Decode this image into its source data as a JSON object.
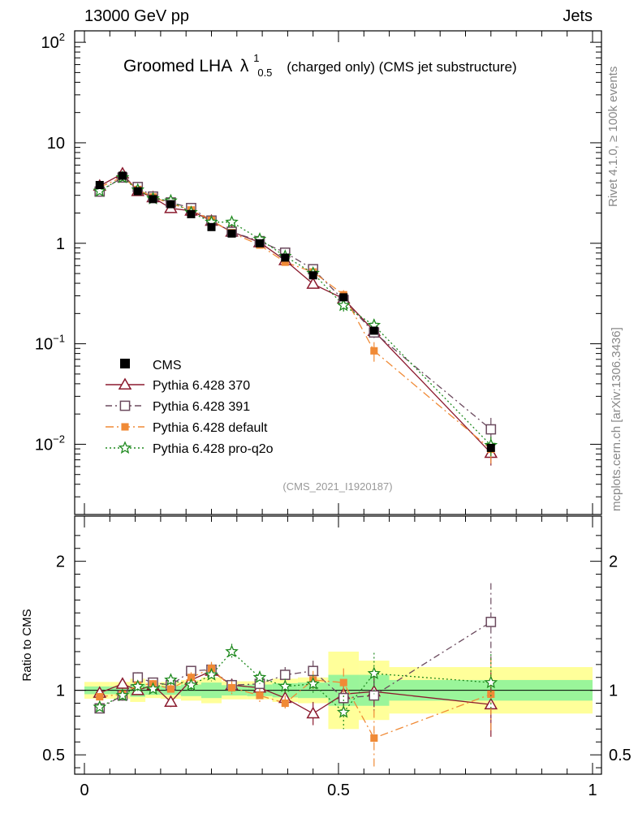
{
  "header": {
    "left": "13000 GeV pp",
    "right": "Jets"
  },
  "title": {
    "main": "Groomed LHA",
    "lambda": "λ",
    "sup": "1",
    "sub": "0.5",
    "extra": "(charged only) (CMS jet substructure)"
  },
  "side_labels": {
    "rivet": "Rivet 4.1.0, ≥ 100k events",
    "mcplots": "mcplots.cern.ch [arXiv:1306.3436]"
  },
  "analysis_id": "(CMS_2021_I1920187)",
  "chart_data": {
    "type": "line",
    "x": [
      0.03,
      0.075,
      0.105,
      0.135,
      0.17,
      0.21,
      0.25,
      0.29,
      0.345,
      0.395,
      0.45,
      0.51,
      0.57,
      0.8
    ],
    "xlim": [
      0,
      1
    ],
    "main_ylim": [
      0.002,
      130
    ],
    "main_ticks": [
      {
        "v": 100,
        "base": "10",
        "exp": "2"
      },
      {
        "v": 10,
        "base": "10",
        "exp": ""
      },
      {
        "v": 1,
        "base": "1",
        "exp": ""
      },
      {
        "v": 0.1,
        "base": "10",
        "exp": "−1"
      },
      {
        "v": 0.01,
        "base": "10",
        "exp": "−2"
      }
    ],
    "ratio_ylim": [
      0.35,
      2.35
    ],
    "ratio_ticks": [
      {
        "v": 2,
        "label": "2"
      },
      {
        "v": 1,
        "label": "1"
      },
      {
        "v": 0.5,
        "label": "0.5"
      }
    ],
    "x_ticks": [
      {
        "v": 0,
        "label": "0"
      },
      {
        "v": 0.5,
        "label": "0.5"
      },
      {
        "v": 1,
        "label": "1"
      }
    ],
    "ratio_ylabel": "Ratio to CMS",
    "cms": {
      "name": "CMS",
      "values": [
        3.8,
        4.7,
        3.3,
        2.75,
        2.45,
        1.95,
        1.45,
        1.25,
        1.0,
        0.72,
        0.48,
        0.29,
        0.135,
        0.0092
      ],
      "bands_outer": [
        0.065,
        0.065,
        0.09,
        0.06,
        0.065,
        0.08,
        0.1,
        0.07,
        0.07,
        0.09,
        0.1,
        0.3,
        0.23,
        0.18
      ],
      "bands_inner": [
        0.03,
        0.03,
        0.05,
        0.035,
        0.035,
        0.045,
        0.06,
        0.04,
        0.045,
        0.055,
        0.06,
        0.12,
        0.12,
        0.08
      ],
      "bin_edges": [
        0.0,
        0.05,
        0.09,
        0.12,
        0.15,
        0.19,
        0.23,
        0.27,
        0.32,
        0.37,
        0.42,
        0.48,
        0.54,
        0.6,
        1.0
      ]
    },
    "series": [
      {
        "name": "Pythia 6.428 370",
        "color": "#8b1a2e",
        "marker": "triangle",
        "dash": "",
        "ratio": [
          0.98,
          1.05,
          1.0,
          1.04,
          0.91,
          1.08,
          1.15,
          1.04,
          1.02,
          0.94,
          0.82,
          0.97,
          0.99,
          0.89
        ],
        "ratio_err": [
          0.03,
          0.04,
          0.03,
          0.03,
          0.04,
          0.04,
          0.05,
          0.05,
          0.05,
          0.06,
          0.09,
          0.1,
          0.12,
          0.25
        ]
      },
      {
        "name": "Pythia 6.428 391",
        "color": "#6b4a5e",
        "marker": "square_open",
        "dash": "8,4,2,4",
        "ratio": [
          0.86,
          0.96,
          1.1,
          1.06,
          1.04,
          1.15,
          1.16,
          1.04,
          1.05,
          1.12,
          1.15,
          0.94,
          0.96,
          1.53
        ],
        "ratio_err": [
          0.03,
          0.04,
          0.04,
          0.03,
          0.04,
          0.04,
          0.05,
          0.05,
          0.05,
          0.06,
          0.08,
          0.1,
          0.12,
          0.3
        ]
      },
      {
        "name": "Pythia 6.428 default",
        "color": "#f08a36",
        "marker": "square_filled",
        "dash": "10,4,2,4",
        "ratio": [
          0.95,
          0.97,
          1.04,
          1.05,
          1.01,
          1.1,
          1.17,
          1.02,
          0.96,
          0.9,
          1.08,
          1.06,
          0.63,
          0.97
        ],
        "ratio_err": [
          0.03,
          0.04,
          0.04,
          0.03,
          0.04,
          0.04,
          0.05,
          0.05,
          0.05,
          0.06,
          0.07,
          0.11,
          0.22,
          0.28
        ]
      },
      {
        "name": "Pythia 6.428 pro-q2o",
        "color": "#1f8a1f",
        "marker": "star",
        "dash": "2,3",
        "ratio": [
          0.87,
          0.96,
          1.03,
          1.01,
          1.08,
          1.04,
          1.12,
          1.3,
          1.1,
          1.03,
          1.05,
          0.83,
          1.13,
          1.06
        ],
        "ratio_err": [
          0.03,
          0.04,
          0.04,
          0.03,
          0.04,
          0.04,
          0.05,
          0.06,
          0.05,
          0.06,
          0.07,
          0.13,
          0.16,
          0.22
        ]
      }
    ],
    "legend_position": "lower-left"
  }
}
